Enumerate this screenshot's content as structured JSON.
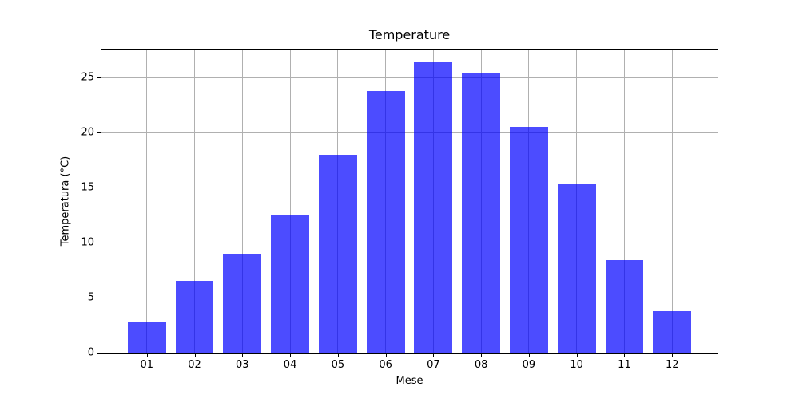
{
  "chart_data": {
    "type": "bar",
    "title": "Temperature",
    "xlabel": "Mese",
    "ylabel": "Temperatura (°C)",
    "categories": [
      "01",
      "02",
      "03",
      "04",
      "05",
      "06",
      "07",
      "08",
      "09",
      "10",
      "11",
      "12"
    ],
    "values": [
      2.8,
      6.5,
      9.0,
      12.5,
      18.0,
      23.8,
      26.4,
      25.5,
      20.5,
      15.4,
      8.4,
      3.8
    ],
    "yticks": [
      0,
      5,
      10,
      15,
      20,
      25
    ],
    "ylim": [
      0,
      27.5
    ],
    "xlim": [
      0.05,
      12.95
    ],
    "bar_width_units": 0.8,
    "legend": "none",
    "grid": true,
    "colors": {
      "bar_fill": "#0000FF",
      "bar_opacity": 0.7,
      "gridline": "#B0B0B0",
      "spine": "#000000",
      "text": "#000000",
      "background": "#FFFFFF"
    }
  }
}
